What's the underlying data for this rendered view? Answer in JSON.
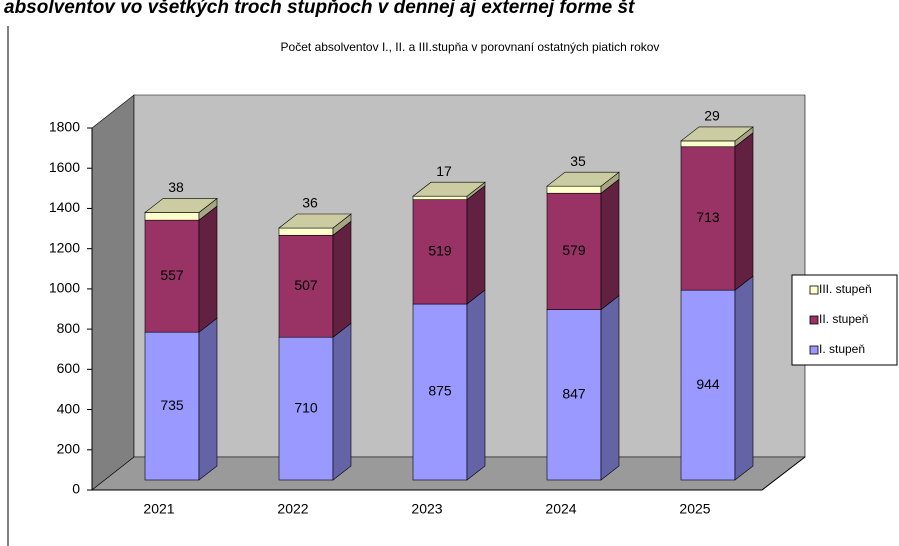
{
  "heading": "absolventov vo všetkých troch stupňoch v dennej aj externej forme št",
  "chart_data": {
    "type": "bar3d_stacked",
    "title": "Počet absolventov  I., II. a III.stupňa v porovnaní ostatných piatich rokov",
    "categories": [
      "2021",
      "2022",
      "2023",
      "2024",
      "2025"
    ],
    "series": [
      {
        "name": "I. stupeň",
        "color": "#9999ff",
        "values": [
          735,
          710,
          875,
          847,
          944
        ]
      },
      {
        "name": "II. stupeň",
        "color": "#993366",
        "values": [
          557,
          507,
          519,
          579,
          713
        ]
      },
      {
        "name": "III. stupeň",
        "color": "#ffffcc",
        "values": [
          38,
          36,
          17,
          35,
          29
        ]
      }
    ],
    "ylim": [
      0,
      1800
    ],
    "yticks": [
      0,
      200,
      400,
      600,
      800,
      1000,
      1200,
      1400,
      1600,
      1800
    ],
    "grid": false,
    "legend": "right"
  }
}
